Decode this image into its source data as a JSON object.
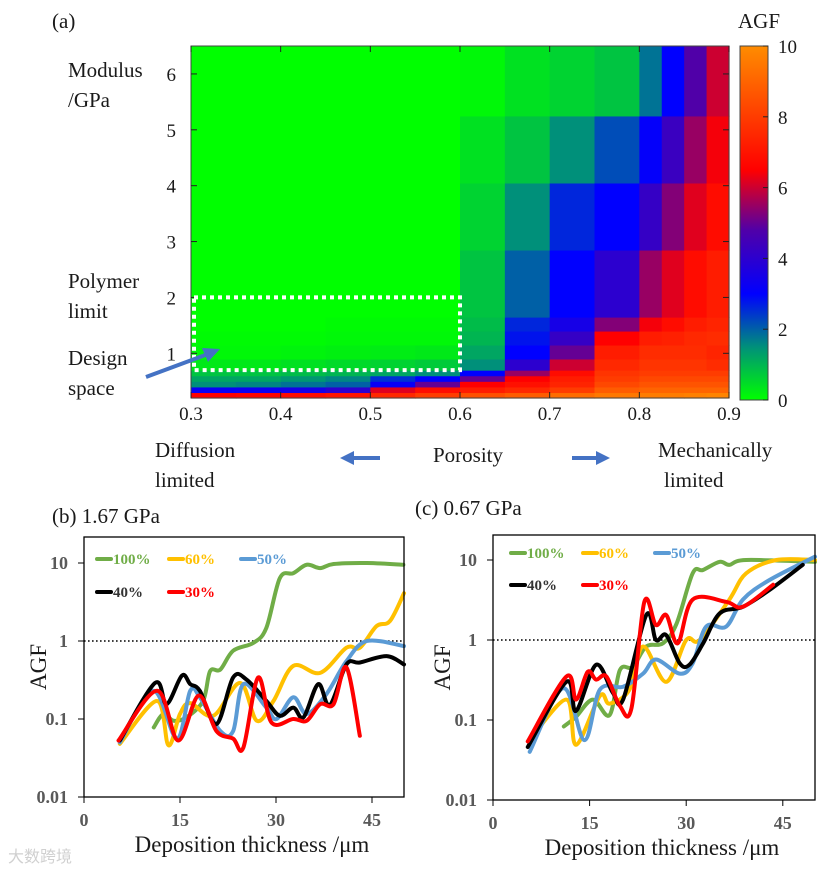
{
  "panel_a": {
    "label": "(a)",
    "ylabel_line1": "Modulus",
    "ylabel_line2": "/GPa",
    "xlabel": "Porosity",
    "left_note_line1": "Diffusion",
    "left_note_line2": "limited",
    "right_note_line1": "Mechanically",
    "right_note_line2": "limited",
    "polymer_line1": "Polymer",
    "polymer_line2": "limit",
    "design_line1": "Design",
    "design_line2": "space",
    "colorbar_title": "AGF",
    "colorbar_ticks": [
      "0",
      "2",
      "4",
      "6",
      "8",
      "10"
    ],
    "xticks": [
      "0.3",
      "0.4",
      "0.5",
      "0.6",
      "0.7",
      "0.8",
      "0.9"
    ],
    "yticks": [
      "1",
      "2",
      "3",
      "4",
      "5",
      "6"
    ]
  },
  "chart_data": [
    {
      "type": "heatmap",
      "title": "(a)",
      "xlabel": "Porosity",
      "ylabel": "Modulus /GPa",
      "colorbar_label": "AGF",
      "xlim": [
        0.3,
        0.9
      ],
      "ylim": [
        0.2,
        6.5
      ],
      "clim": [
        0,
        10
      ],
      "x_edges": [
        0.3,
        0.35,
        0.4,
        0.45,
        0.5,
        0.55,
        0.6,
        0.65,
        0.7,
        0.75,
        0.8,
        0.825,
        0.85,
        0.875,
        0.9
      ],
      "y_edges": [
        0.2,
        0.3,
        0.4,
        0.5,
        0.6,
        0.7,
        0.9,
        1.15,
        1.4,
        1.65,
        2.85,
        4.05,
        5.25,
        6.5
      ],
      "values_bottom_to_top": [
        [
          6.5,
          6.6,
          6.8,
          7.0,
          7.5,
          8.0,
          8.5,
          8.8,
          9.2,
          9.5,
          9.6,
          9.6,
          9.7,
          9.8
        ],
        [
          3.2,
          3.3,
          3.5,
          4.0,
          6.2,
          6.8,
          7.2,
          7.5,
          8.0,
          8.8,
          9.0,
          9.0,
          9.0,
          9.0
        ],
        [
          1.5,
          1.6,
          1.8,
          2.0,
          3.2,
          5.0,
          6.5,
          6.9,
          7.4,
          8.3,
          8.6,
          8.6,
          8.6,
          8.6
        ],
        [
          1.2,
          1.2,
          1.4,
          1.6,
          2.5,
          3.0,
          5.0,
          6.5,
          7.2,
          8.0,
          8.3,
          8.3,
          8.3,
          8.3
        ],
        [
          0.8,
          0.8,
          0.9,
          1.0,
          1.2,
          1.5,
          3.0,
          5.5,
          6.8,
          7.8,
          8.0,
          8.0,
          8.0,
          8.0
        ],
        [
          0.3,
          0.3,
          0.4,
          0.5,
          0.6,
          0.7,
          1.5,
          4.0,
          6.0,
          7.5,
          7.8,
          7.8,
          7.8,
          7.6
        ],
        [
          0.1,
          0.1,
          0.15,
          0.2,
          0.25,
          0.3,
          1.2,
          3.0,
          5.0,
          7.2,
          7.6,
          7.6,
          7.6,
          7.4
        ],
        [
          0.05,
          0.05,
          0.05,
          0.1,
          0.1,
          0.1,
          1.0,
          2.8,
          4.2,
          6.5,
          7.2,
          7.3,
          7.5,
          7.6
        ],
        [
          0,
          0,
          0,
          0.05,
          0.05,
          0.05,
          0.9,
          2.6,
          3.5,
          5.3,
          6.4,
          6.8,
          7.2,
          7.4
        ],
        [
          0,
          0,
          0,
          0,
          0,
          0,
          0.8,
          2.0,
          3.0,
          4.0,
          5.5,
          6.2,
          6.8,
          7.2
        ],
        [
          0,
          0,
          0,
          0,
          0,
          0,
          0.6,
          1.5,
          2.6,
          3.0,
          4.2,
          5.3,
          6.2,
          6.8
        ],
        [
          0,
          0,
          0,
          0,
          0,
          0,
          0.4,
          0.8,
          1.5,
          2.2,
          3.1,
          4.3,
          5.5,
          6.4
        ],
        [
          0,
          0,
          0,
          0,
          0,
          0,
          0.1,
          0.4,
          0.6,
          0.8,
          1.8,
          3.0,
          4.8,
          6.0
        ]
      ],
      "annotations": [
        "Polymer limit",
        "Design space",
        "Diffusion limited",
        "Mechanically limited"
      ],
      "design_space": {
        "porosity": [
          0.3,
          0.6
        ],
        "modulus": [
          0.7,
          2.0
        ]
      }
    },
    {
      "type": "line",
      "title": "(b) 1.67 GPa",
      "xlabel": "Deposition thickness /μm",
      "ylabel": "AGF",
      "xlim": [
        0,
        50
      ],
      "ylim": [
        0.01,
        20
      ],
      "yscale": "log",
      "xticks": [
        "0",
        "15",
        "30",
        "45"
      ],
      "yticks": [
        "0.01",
        "0.1",
        "1",
        "10"
      ],
      "reference_line": 1,
      "legend": "top-left",
      "series": [
        {
          "name": "100%",
          "color": "#70ad47",
          "points": [
            [
              10.9,
              0.078
            ],
            [
              12.4,
              0.116
            ],
            [
              14,
              0.095
            ],
            [
              16,
              0.105
            ],
            [
              18.6,
              0.17
            ],
            [
              19.7,
              0.41
            ],
            [
              21.3,
              0.43
            ],
            [
              23.3,
              0.75
            ],
            [
              26.5,
              0.95
            ],
            [
              28.5,
              1.48
            ],
            [
              30.6,
              6.4
            ],
            [
              32.7,
              7.4
            ],
            [
              34.8,
              9.5
            ],
            [
              36.9,
              8.6
            ],
            [
              39,
              9.7
            ],
            [
              44.2,
              10
            ],
            [
              49.9,
              9.5
            ]
          ]
        },
        {
          "name": "60%",
          "color": "#ffc000",
          "points": [
            [
              5.6,
              0.048
            ],
            [
              11.4,
              0.17
            ],
            [
              13.2,
              0.046
            ],
            [
              15,
              0.116
            ],
            [
              16.6,
              0.16
            ],
            [
              20.2,
              0.11
            ],
            [
              24.4,
              0.29
            ],
            [
              27,
              0.095
            ],
            [
              29.6,
              0.17
            ],
            [
              32.7,
              0.48
            ],
            [
              36.9,
              0.39
            ],
            [
              41,
              0.82
            ],
            [
              43.1,
              0.82
            ],
            [
              45.7,
              1.55
            ],
            [
              47.8,
              1.8
            ],
            [
              50,
              4.1
            ]
          ]
        },
        {
          "name": "50%",
          "color": "#5b9bd5",
          "points": [
            [
              5.6,
              0.05
            ],
            [
              10.8,
              0.23
            ],
            [
              14.5,
              0.056
            ],
            [
              16.6,
              0.23
            ],
            [
              18.1,
              0.19
            ],
            [
              21.3,
              0.07
            ],
            [
              23.3,
              0.07
            ],
            [
              24.9,
              0.28
            ],
            [
              28.5,
              0.14
            ],
            [
              30.1,
              0.1
            ],
            [
              32.7,
              0.19
            ],
            [
              34.8,
              0.116
            ],
            [
              37.9,
              0.21
            ],
            [
              41,
              0.55
            ],
            [
              44.2,
              1.0
            ],
            [
              50,
              0.86
            ]
          ]
        },
        {
          "name": "40%",
          "color": "#000000",
          "points": [
            [
              5.6,
              0.053
            ],
            [
              11.1,
              0.29
            ],
            [
              12.9,
              0.155
            ],
            [
              15.3,
              0.36
            ],
            [
              16.6,
              0.28
            ],
            [
              18.1,
              0.23
            ],
            [
              20.7,
              0.086
            ],
            [
              23.3,
              0.34
            ],
            [
              25.4,
              0.32
            ],
            [
              28.5,
              0.17
            ],
            [
              30.6,
              0.11
            ],
            [
              32.7,
              0.14
            ],
            [
              34.3,
              0.105
            ],
            [
              36.6,
              0.28
            ],
            [
              38.4,
              0.15
            ],
            [
              41,
              0.5
            ],
            [
              43.1,
              0.53
            ],
            [
              47.3,
              0.64
            ],
            [
              50,
              0.5
            ]
          ]
        },
        {
          "name": "30%",
          "color": "#ff0000",
          "points": [
            [
              5.4,
              0.053
            ],
            [
              11.4,
              0.23
            ],
            [
              14.7,
              0.053
            ],
            [
              17.9,
              0.2
            ],
            [
              20.7,
              0.07
            ],
            [
              23.3,
              0.056
            ],
            [
              24.9,
              0.043
            ],
            [
              27.2,
              0.34
            ],
            [
              29.3,
              0.09
            ],
            [
              32.7,
              0.1
            ],
            [
              34.8,
              0.095
            ],
            [
              36.9,
              0.155
            ],
            [
              39,
              0.155
            ],
            [
              41,
              0.46
            ],
            [
              43.1,
              0.061
            ]
          ]
        }
      ]
    },
    {
      "type": "line",
      "title": "(c) 0.67 GPa",
      "xlabel": "Deposition thickness /μm",
      "ylabel": "AGF",
      "xlim": [
        0,
        50
      ],
      "ylim": [
        0.01,
        20
      ],
      "yscale": "log",
      "xticks": [
        "0",
        "15",
        "30",
        "45"
      ],
      "yticks": [
        "0.01",
        "0.1",
        "1",
        "10"
      ],
      "reference_line": 1,
      "legend": "top-left",
      "series": [
        {
          "name": "100%",
          "color": "#70ad47",
          "points": [
            [
              11,
              0.083
            ],
            [
              12.9,
              0.11
            ],
            [
              15.5,
              0.18
            ],
            [
              18.1,
              0.115
            ],
            [
              19.7,
              0.42
            ],
            [
              21.7,
              0.46
            ],
            [
              23.8,
              0.83
            ],
            [
              26.4,
              0.91
            ],
            [
              28.5,
              1.6
            ],
            [
              31,
              6.8
            ],
            [
              32.6,
              7.5
            ],
            [
              35.2,
              9.5
            ],
            [
              36.7,
              8.7
            ],
            [
              39.3,
              10
            ],
            [
              50,
              9.5
            ]
          ]
        },
        {
          "name": "60%",
          "color": "#ffc000",
          "points": [
            [
              5.7,
              0.056
            ],
            [
              11.4,
              0.18
            ],
            [
              12.9,
              0.049
            ],
            [
              16.6,
              0.2
            ],
            [
              18.1,
              0.16
            ],
            [
              21.2,
              0.24
            ],
            [
              23.3,
              0.83
            ],
            [
              26.9,
              0.3
            ],
            [
              30,
              1.0
            ],
            [
              32.1,
              1.0
            ],
            [
              36.7,
              3.2
            ],
            [
              39.3,
              6.8
            ],
            [
              44,
              10
            ],
            [
              50,
              10
            ]
          ]
        },
        {
          "name": "50%",
          "color": "#5b9bd5",
          "points": [
            [
              5.7,
              0.04
            ],
            [
              10.9,
              0.25
            ],
            [
              14.2,
              0.056
            ],
            [
              16.6,
              0.24
            ],
            [
              20.2,
              0.26
            ],
            [
              23.3,
              0.38
            ],
            [
              25.3,
              0.57
            ],
            [
              29,
              0.38
            ],
            [
              31,
              0.51
            ],
            [
              33.1,
              1.47
            ],
            [
              36.2,
              1.47
            ],
            [
              38.8,
              3.2
            ],
            [
              42.9,
              5.6
            ],
            [
              50,
              11
            ]
          ]
        },
        {
          "name": "40%",
          "color": "#000000",
          "points": [
            [
              5.4,
              0.046
            ],
            [
              11.4,
              0.3
            ],
            [
              12.9,
              0.13
            ],
            [
              16,
              0.49
            ],
            [
              18.6,
              0.22
            ],
            [
              20.2,
              0.18
            ],
            [
              23.8,
              2.05
            ],
            [
              25.3,
              1.0
            ],
            [
              26.9,
              1.15
            ],
            [
              29,
              0.51
            ],
            [
              30.5,
              0.49
            ],
            [
              32.6,
              0.9
            ],
            [
              35.2,
              2.15
            ],
            [
              38.8,
              2.6
            ],
            [
              42.9,
              4.2
            ],
            [
              48.1,
              8.7
            ]
          ]
        },
        {
          "name": "30%",
          "color": "#ff0000",
          "points": [
            [
              5.4,
              0.054
            ],
            [
              11.4,
              0.35
            ],
            [
              12.9,
              0.18
            ],
            [
              14.7,
              0.4
            ],
            [
              16,
              0.32
            ],
            [
              17.6,
              0.35
            ],
            [
              19.7,
              0.15
            ],
            [
              21.5,
              0.14
            ],
            [
              23.5,
              3.0
            ],
            [
              25.3,
              1.54
            ],
            [
              26.9,
              2.05
            ],
            [
              28.7,
              0.91
            ],
            [
              31,
              3.2
            ],
            [
              36.2,
              3.0
            ],
            [
              38.8,
              2.6
            ],
            [
              43.5,
              4.9
            ]
          ]
        }
      ]
    }
  ],
  "colors": {
    "arrow": "#4472c4",
    "axis_text_b": "#595959",
    "colormap_stops": [
      [
        0,
        "#00ff00"
      ],
      [
        1.5,
        "#00907a"
      ],
      [
        3,
        "#0000ff"
      ],
      [
        4.8,
        "#5000a8"
      ],
      [
        6.5,
        "#ff0000"
      ],
      [
        10,
        "#ff8c00"
      ]
    ]
  },
  "watermark": "大数跨境"
}
